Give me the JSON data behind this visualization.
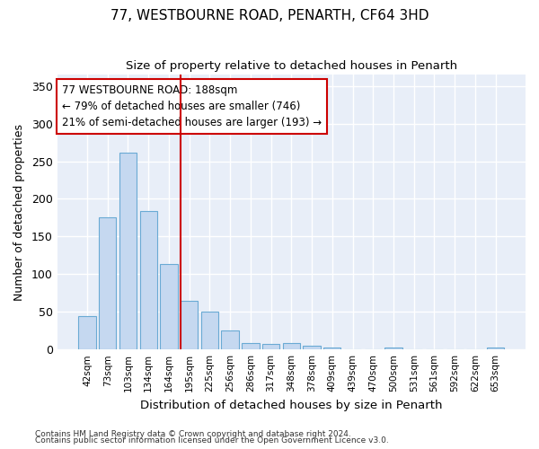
{
  "title_line1": "77, WESTBOURNE ROAD, PENARTH, CF64 3HD",
  "title_line2": "Size of property relative to detached houses in Penarth",
  "xlabel": "Distribution of detached houses by size in Penarth",
  "ylabel": "Number of detached properties",
  "bar_labels": [
    "42sqm",
    "73sqm",
    "103sqm",
    "134sqm",
    "164sqm",
    "195sqm",
    "225sqm",
    "256sqm",
    "286sqm",
    "317sqm",
    "348sqm",
    "378sqm",
    "409sqm",
    "439sqm",
    "470sqm",
    "500sqm",
    "531sqm",
    "561sqm",
    "592sqm",
    "622sqm",
    "653sqm"
  ],
  "bar_values": [
    44,
    175,
    261,
    184,
    114,
    65,
    50,
    25,
    8,
    7,
    9,
    5,
    3,
    0,
    0,
    3,
    0,
    0,
    0,
    0,
    3
  ],
  "bar_color": "#c5d8f0",
  "bar_edge_color": "#6aaad4",
  "vline_index": 5,
  "vline_color": "#cc0000",
  "annotation_line1": "77 WESTBOURNE ROAD: 188sqm",
  "annotation_line2": "← 79% of detached houses are smaller (746)",
  "annotation_line3": "21% of semi-detached houses are larger (193) →",
  "annotation_box_color": "#ffffff",
  "annotation_box_edge": "#cc0000",
  "ylim": [
    0,
    365
  ],
  "yticks": [
    0,
    50,
    100,
    150,
    200,
    250,
    300,
    350
  ],
  "footnote_line1": "Contains HM Land Registry data © Crown copyright and database right 2024.",
  "footnote_line2": "Contains public sector information licensed under the Open Government Licence v3.0.",
  "fig_bg_color": "#ffffff",
  "ax_bg_color": "#e8eef8",
  "grid_color": "#ffffff",
  "title1_fontsize": 11,
  "title2_fontsize": 9.5
}
